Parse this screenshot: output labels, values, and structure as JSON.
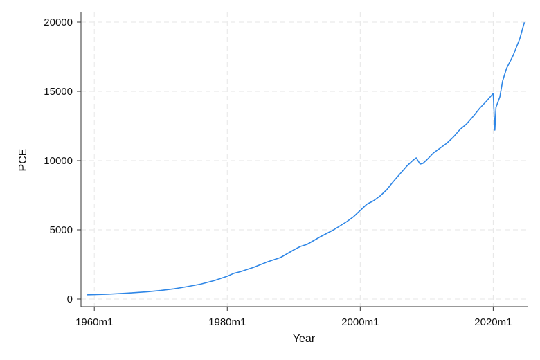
{
  "chart_data": {
    "type": "line",
    "title": "",
    "xlabel": "Year",
    "ylabel": "PCE",
    "xlim": [
      "1958m1",
      "2025m3"
    ],
    "ylim": [
      -550,
      20700
    ],
    "x_ticks": [
      {
        "value": "1960m1",
        "label": "1960m1"
      },
      {
        "value": "1980m1",
        "label": "1980m1"
      },
      {
        "value": "2000m1",
        "label": "2000m1"
      },
      {
        "value": "2020m1",
        "label": "2020m1"
      }
    ],
    "y_ticks": [
      {
        "value": 0,
        "label": "0"
      },
      {
        "value": 5000,
        "label": "5000"
      },
      {
        "value": 10000,
        "label": "10000"
      },
      {
        "value": 15000,
        "label": "15000"
      },
      {
        "value": 20000,
        "label": "20000"
      }
    ],
    "grid": true,
    "series": [
      {
        "color": "#2e86e6",
        "points": [
          [
            "1959m1",
            310
          ],
          [
            "1962m1",
            350
          ],
          [
            "1965m1",
            430
          ],
          [
            "1968m1",
            530
          ],
          [
            "1970m1",
            620
          ],
          [
            "1972m1",
            740
          ],
          [
            "1974m1",
            900
          ],
          [
            "1976m1",
            1080
          ],
          [
            "1978m1",
            1330
          ],
          [
            "1980m1",
            1650
          ],
          [
            "1981m1",
            1860
          ],
          [
            "1982m1",
            1980
          ],
          [
            "1984m1",
            2300
          ],
          [
            "1986m1",
            2680
          ],
          [
            "1988m1",
            3000
          ],
          [
            "1990m1",
            3550
          ],
          [
            "1991m1",
            3800
          ],
          [
            "1992m1",
            3950
          ],
          [
            "1994m1",
            4500
          ],
          [
            "1996m1",
            5000
          ],
          [
            "1998m1",
            5600
          ],
          [
            "1999m1",
            5950
          ],
          [
            "2000m1",
            6400
          ],
          [
            "2001m1",
            6850
          ],
          [
            "2002m1",
            7100
          ],
          [
            "2003m1",
            7450
          ],
          [
            "2004m1",
            7900
          ],
          [
            "2005m1",
            8500
          ],
          [
            "2006m1",
            9050
          ],
          [
            "2007m1",
            9600
          ],
          [
            "2008m1",
            10050
          ],
          [
            "2008m6",
            10200
          ],
          [
            "2009m1",
            9750
          ],
          [
            "2009m6",
            9800
          ],
          [
            "2010m1",
            10050
          ],
          [
            "2011m1",
            10550
          ],
          [
            "2012m1",
            10900
          ],
          [
            "2013m1",
            11250
          ],
          [
            "2014m1",
            11700
          ],
          [
            "2015m1",
            12250
          ],
          [
            "2016m1",
            12650
          ],
          [
            "2017m1",
            13200
          ],
          [
            "2018m1",
            13800
          ],
          [
            "2019m1",
            14300
          ],
          [
            "2020m1",
            14850
          ],
          [
            "2020m4",
            12200
          ],
          [
            "2020m6",
            13850
          ],
          [
            "2021m1",
            14600
          ],
          [
            "2021m6",
            15750
          ],
          [
            "2022m1",
            16650
          ],
          [
            "2023m1",
            17600
          ],
          [
            "2024m1",
            18800
          ],
          [
            "2024m9",
            19950
          ]
        ]
      }
    ]
  }
}
